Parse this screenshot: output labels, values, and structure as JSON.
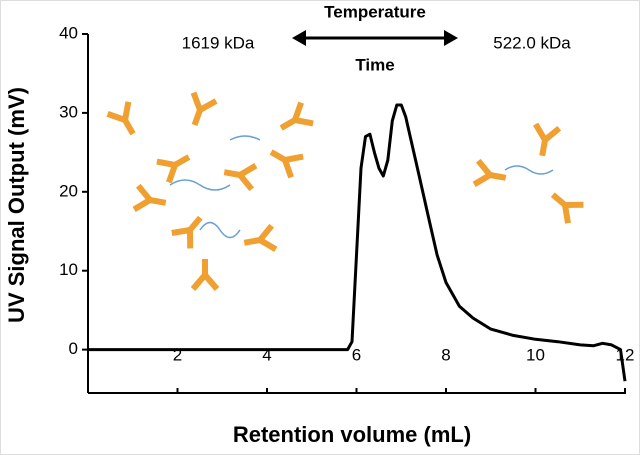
{
  "chart_data": {
    "type": "line",
    "xlabel": "Retention volume (mL)",
    "ylabel": "UV Signal Output (mV)",
    "annotations": [
      "Temperature",
      "Time",
      "1619 kDa",
      "522.0 kDa"
    ],
    "color": "#000000",
    "x": [
      0,
      1,
      2,
      3,
      4,
      5,
      5.8,
      5.9,
      6.0,
      6.1,
      6.2,
      6.3,
      6.4,
      6.5,
      6.6,
      6.7,
      6.8,
      6.9,
      7.0,
      7.1,
      7.2,
      7.4,
      7.6,
      7.8,
      8.0,
      8.3,
      8.6,
      9.0,
      9.5,
      10,
      10.5,
      11,
      11.3,
      11.5,
      11.7,
      11.9,
      12
    ],
    "values": [
      0,
      0,
      0,
      0,
      0,
      0,
      0,
      1,
      12,
      23,
      27,
      27.3,
      25,
      23,
      22,
      24,
      29,
      31,
      31,
      29.5,
      27,
      22,
      17,
      12,
      8.5,
      5.5,
      4,
      2.6,
      1.8,
      1.3,
      1,
      0.6,
      0.5,
      0.8,
      0.6,
      0,
      -4
    ],
    "xlim": [
      0,
      12
    ],
    "xticks": [
      2,
      4,
      6,
      8,
      10,
      12
    ],
    "ylim": [
      -5.5,
      40
    ],
    "yticks": [
      0,
      10,
      20,
      30,
      40
    ]
  }
}
